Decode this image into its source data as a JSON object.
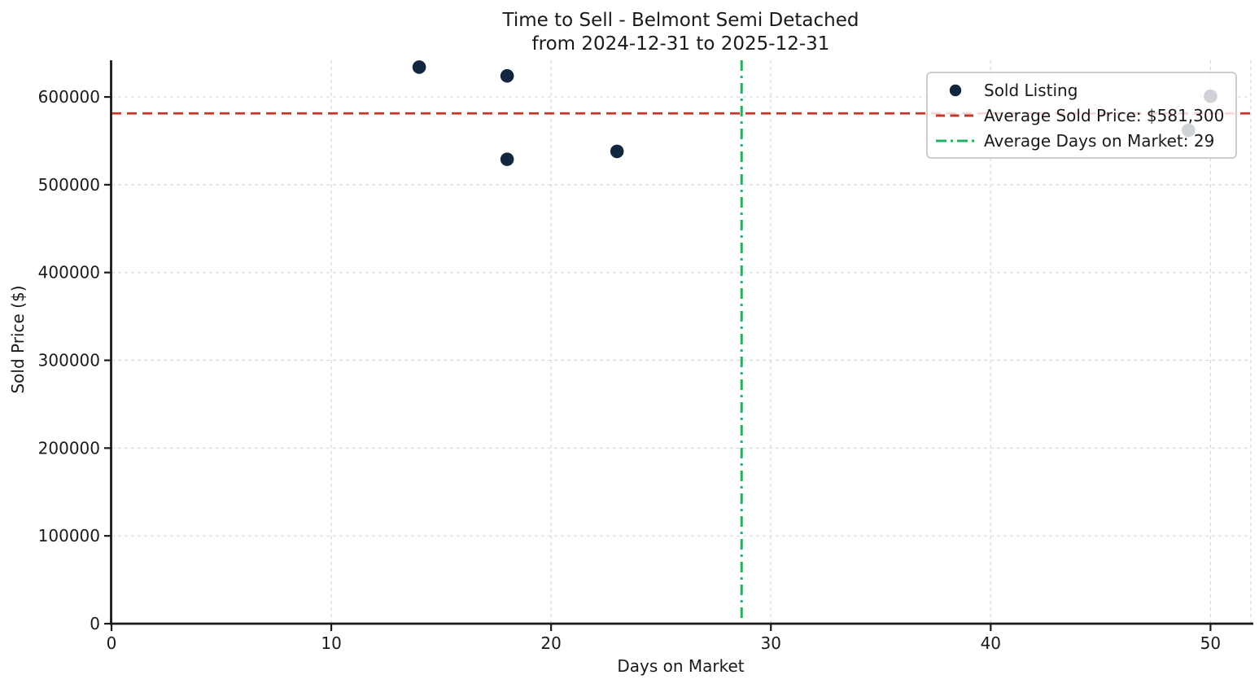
{
  "title": {
    "line1": "Time to Sell - Belmont Semi Detached",
    "line2": "from 2024-12-31 to 2025-12-31"
  },
  "chart_data": {
    "type": "scatter",
    "title": "Time to Sell - Belmont Semi Detached from 2024-12-31 to 2025-12-31",
    "xlabel": "Days on Market",
    "ylabel": "Sold Price ($)",
    "xlim": [
      0,
      51.8
    ],
    "ylim": [
      0,
      641800
    ],
    "xticks": [
      0,
      10,
      20,
      30,
      40,
      50
    ],
    "yticks": [
      0,
      100000,
      200000,
      300000,
      400000,
      500000,
      600000
    ],
    "grid": true,
    "legend_position": "upper right",
    "series": [
      {
        "name": "Sold Listing",
        "type": "scatter",
        "color": "#13263f",
        "x": [
          14,
          18,
          18,
          23,
          49,
          50
        ],
        "y": [
          634000,
          624000,
          529000,
          538000,
          562000,
          600800
        ]
      },
      {
        "name": "Average Sold Price: $581,300",
        "type": "hline",
        "value": 581300,
        "color": "#c0392b",
        "linestyle": "dashed"
      },
      {
        "name": "Average Days on Market: 29",
        "type": "vline",
        "value": 28.667,
        "color": "#27ae60",
        "linestyle": "dashdot"
      }
    ],
    "averages": {
      "sold_price_label": "$581,300",
      "days_on_market_label": "29"
    }
  },
  "colors": {
    "point": "#13263f",
    "avg_price_line": "#c0392b",
    "avg_days_line": "#27ae60",
    "grid": "#d9d9d9",
    "axis": "#1a1a1a",
    "text": "#1a1a1a",
    "legend_border": "#cdcdcd"
  }
}
